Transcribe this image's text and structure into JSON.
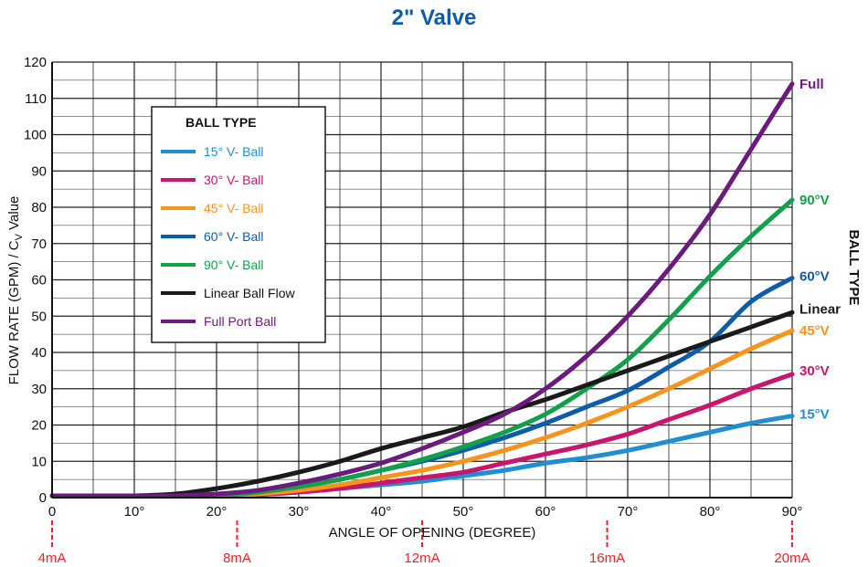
{
  "chart_data": {
    "type": "line",
    "title": "2\" Valve",
    "xlabel": "ANGLE OF OPENING (DEGREE)",
    "ylabel": "FLOW RATE (GPM) / C",
    "ylabel_sub": "V",
    "ylabel_suffix": " Value",
    "right_label": "BALL TYPE",
    "xlim": [
      0,
      90
    ],
    "ylim": [
      0,
      120
    ],
    "x_ticks": [
      {
        "value": 0,
        "label": "0"
      },
      {
        "value": 10,
        "label": "10°"
      },
      {
        "value": 20,
        "label": "20°"
      },
      {
        "value": 30,
        "label": "30°"
      },
      {
        "value": 40,
        "label": "40°"
      },
      {
        "value": 50,
        "label": "50°"
      },
      {
        "value": 60,
        "label": "60°"
      },
      {
        "value": 70,
        "label": "70°"
      },
      {
        "value": 80,
        "label": "80°"
      },
      {
        "value": 90,
        "label": "90°"
      }
    ],
    "y_ticks": [
      0,
      10,
      20,
      30,
      40,
      50,
      60,
      70,
      80,
      90,
      100,
      110,
      120
    ],
    "grid": true,
    "ma_markers": [
      {
        "x": 0,
        "label": "4mA"
      },
      {
        "x": 22.5,
        "label": "8mA"
      },
      {
        "x": 45,
        "label": "12mA"
      },
      {
        "x": 67.5,
        "label": "16mA"
      },
      {
        "x": 90,
        "label": "20mA"
      }
    ],
    "ma_color": "#e8262a",
    "legend": {
      "title": "BALL TYPE",
      "position": "top-left"
    },
    "x": [
      0,
      5,
      10,
      15,
      20,
      25,
      30,
      35,
      40,
      45,
      50,
      55,
      60,
      65,
      70,
      75,
      80,
      85,
      90
    ],
    "series": [
      {
        "name": "15° V- Ball",
        "end_label": "15°V",
        "color": "#1f8fd1",
        "values": [
          0.5,
          0.5,
          0.5,
          0.5,
          0.5,
          0.8,
          1.5,
          2.5,
          3.5,
          4.5,
          6,
          7.5,
          9.5,
          11,
          13,
          15.5,
          18,
          20.5,
          22.5
        ]
      },
      {
        "name": "30° V- Ball",
        "end_label": "30°V",
        "color": "#c8156e",
        "values": [
          0.5,
          0.5,
          0.5,
          0.5,
          0.5,
          0.8,
          1.5,
          2.5,
          4,
          5.5,
          7,
          9.5,
          12,
          14.5,
          17.5,
          21.5,
          25.5,
          30,
          34
        ]
      },
      {
        "name": "45° V- Ball",
        "end_label": "45°V",
        "color": "#f7941d",
        "values": [
          0.5,
          0.5,
          0.5,
          0.5,
          0.5,
          1,
          2,
          3.5,
          5.5,
          7.5,
          10,
          13,
          16.5,
          20.5,
          25,
          30,
          35.5,
          41,
          46
        ]
      },
      {
        "name": "60° V- Ball",
        "end_label": "60°V",
        "color": "#0d5ca8",
        "values": [
          0.5,
          0.5,
          0.5,
          0.5,
          0.5,
          1.5,
          3,
          5,
          7.5,
          10,
          13,
          16.5,
          20.5,
          25,
          29.5,
          36,
          43,
          54,
          60.5
        ]
      },
      {
        "name": "90° V- Ball",
        "end_label": "90°V",
        "color": "#12a14b",
        "values": [
          0.5,
          0.5,
          0.5,
          0.5,
          0.5,
          1.5,
          3,
          5,
          7.5,
          10.5,
          14,
          18,
          23,
          30,
          38,
          49,
          61,
          72,
          82
        ]
      },
      {
        "name": "Linear Ball Flow",
        "end_label": "Linear",
        "color": "#1a1a1a",
        "values": [
          0.5,
          0.5,
          0.5,
          1,
          2.5,
          4.5,
          7,
          10,
          13.5,
          16.5,
          19.5,
          23.5,
          27,
          31,
          35,
          39,
          43,
          47,
          51
        ]
      },
      {
        "name": "Full Port Ball",
        "end_label": "Full",
        "color": "#6b1a7e",
        "values": [
          0.5,
          0.5,
          0.5,
          0.5,
          1,
          2,
          4,
          6.5,
          9.5,
          13.5,
          18,
          23,
          30,
          39,
          50,
          63,
          78,
          96,
          114
        ]
      }
    ],
    "end_label_y": [
      23,
      35,
      46,
      61,
      82,
      52,
      114
    ]
  }
}
